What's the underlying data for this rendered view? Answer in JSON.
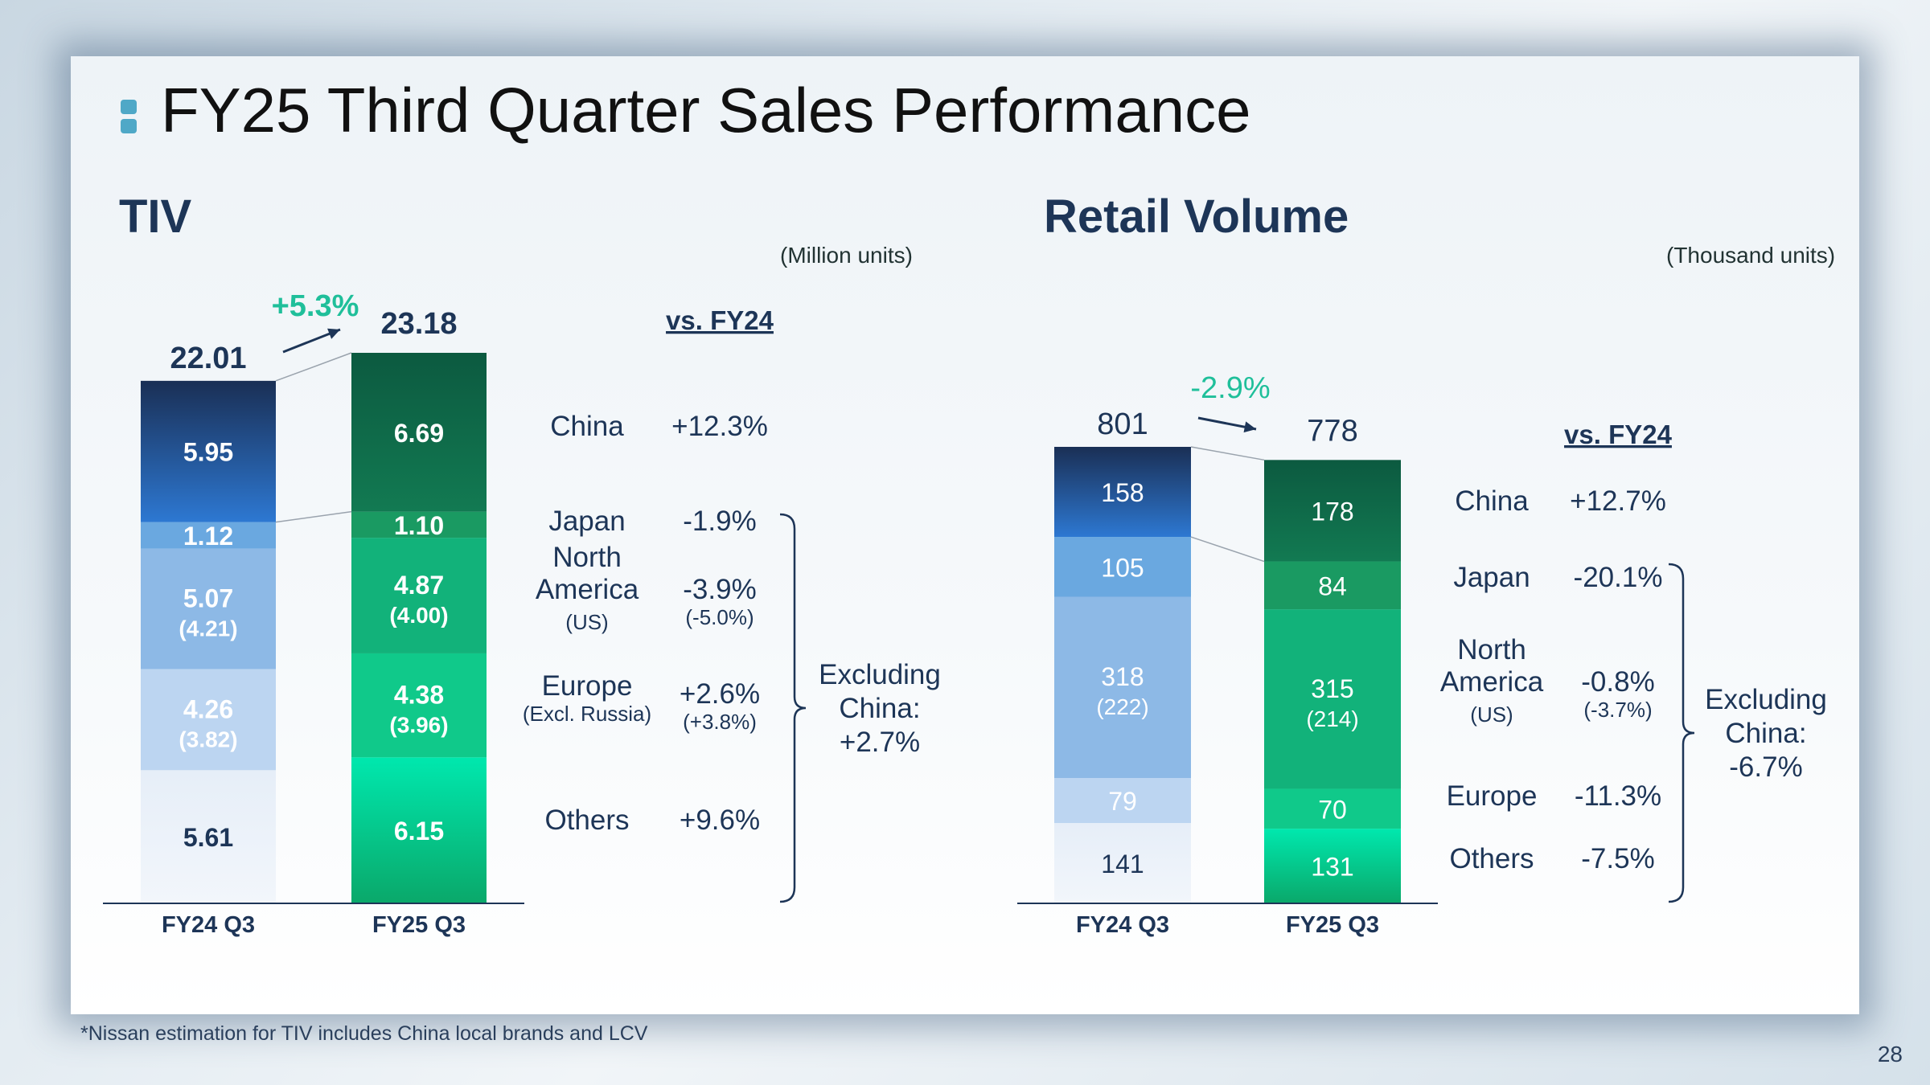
{
  "page_title": "FY25 Third Quarter Sales Performance",
  "footnote": "*Nissan estimation for TIV includes China local brands and LCV",
  "page_number": "28",
  "colors": {
    "title": "#1d3557",
    "growth_positive": "#1fbf9a",
    "fy24_china": "#2a64b8",
    "fy24_japan": "#6aa8e0",
    "fy24_na": "#8db9e6",
    "fy24_europe": "#bcd5f1",
    "fy24_others": "#e4edf7",
    "fy25_china": "#0f5f43",
    "fy25_japan": "#1a9a62",
    "fy25_na": "#12b27a",
    "fy25_europe": "#10c98a",
    "fy25_others": "#00e6aa"
  },
  "chart_data": [
    {
      "type": "bar",
      "stacked": true,
      "title": "TIV",
      "unit_label": "(Million units)",
      "categories": [
        "FY24 Q3",
        "FY25 Q3"
      ],
      "totals": [
        "22.01",
        "23.18"
      ],
      "growth": "+5.3%",
      "series": [
        {
          "name": "Others",
          "values": [
            5.61,
            6.15
          ],
          "labels": [
            "5.61",
            "6.15"
          ],
          "sub_labels": [
            "",
            ""
          ],
          "change": "+9.6%",
          "change_sub": "",
          "region_lines": [
            "Others"
          ]
        },
        {
          "name": "Europe",
          "values": [
            4.26,
            4.38
          ],
          "labels": [
            "4.26",
            "4.38"
          ],
          "sub_labels": [
            "(3.82)",
            "(3.96)"
          ],
          "change": "+2.6%",
          "change_sub": "(+3.8%)",
          "region_lines": [
            "Europe",
            "(Excl. Russia)"
          ]
        },
        {
          "name": "North America",
          "values": [
            5.07,
            4.87
          ],
          "labels": [
            "5.07",
            "4.87"
          ],
          "sub_labels": [
            "(4.21)",
            "(4.00)"
          ],
          "change": "-3.9%",
          "change_sub": "(-5.0%)",
          "region_lines": [
            "North",
            "America",
            "(US)"
          ]
        },
        {
          "name": "Japan",
          "values": [
            1.12,
            1.1
          ],
          "labels": [
            "1.12",
            "1.10"
          ],
          "sub_labels": [
            "",
            ""
          ],
          "change": "-1.9%",
          "change_sub": "",
          "region_lines": [
            "Japan"
          ]
        },
        {
          "name": "China",
          "values": [
            5.95,
            6.69
          ],
          "labels": [
            "5.95",
            "6.69"
          ],
          "sub_labels": [
            "",
            ""
          ],
          "change": "+12.3%",
          "change_sub": "",
          "region_lines": [
            "China"
          ]
        }
      ],
      "vs_header": "vs. FY24",
      "bracket_label": [
        "Excluding",
        "China:",
        "+2.7%"
      ]
    },
    {
      "type": "bar",
      "stacked": true,
      "title": "Retail Volume",
      "unit_label": "(Thousand units)",
      "categories": [
        "FY24 Q3",
        "FY25 Q3"
      ],
      "totals": [
        "801",
        "778"
      ],
      "growth": "-2.9%",
      "series": [
        {
          "name": "Others",
          "values": [
            141,
            131
          ],
          "labels": [
            "141",
            "131"
          ],
          "sub_labels": [
            "",
            ""
          ],
          "change": "-7.5%",
          "change_sub": "",
          "region_lines": [
            "Others"
          ]
        },
        {
          "name": "Europe",
          "values": [
            79,
            70
          ],
          "labels": [
            "79",
            "70"
          ],
          "sub_labels": [
            "",
            ""
          ],
          "change": "-11.3%",
          "change_sub": "",
          "region_lines": [
            "Europe"
          ]
        },
        {
          "name": "North America",
          "values": [
            318,
            315
          ],
          "labels": [
            "318",
            "315"
          ],
          "sub_labels": [
            "(222)",
            "(214)"
          ],
          "change": "-0.8%",
          "change_sub": "(-3.7%)",
          "region_lines": [
            "North",
            "America",
            "(US)"
          ]
        },
        {
          "name": "Japan",
          "values": [
            105,
            84
          ],
          "labels": [
            "105",
            "84"
          ],
          "sub_labels": [
            "",
            ""
          ],
          "change": "-20.1%",
          "change_sub": "",
          "region_lines": [
            "Japan"
          ]
        },
        {
          "name": "China",
          "values": [
            158,
            178
          ],
          "labels": [
            "158",
            "178"
          ],
          "sub_labels": [
            "",
            ""
          ],
          "change": "+12.7%",
          "change_sub": "",
          "region_lines": [
            "China"
          ]
        }
      ],
      "vs_header": "vs. FY24",
      "bracket_label": [
        "Excluding",
        "China:",
        "-6.7%"
      ]
    }
  ]
}
